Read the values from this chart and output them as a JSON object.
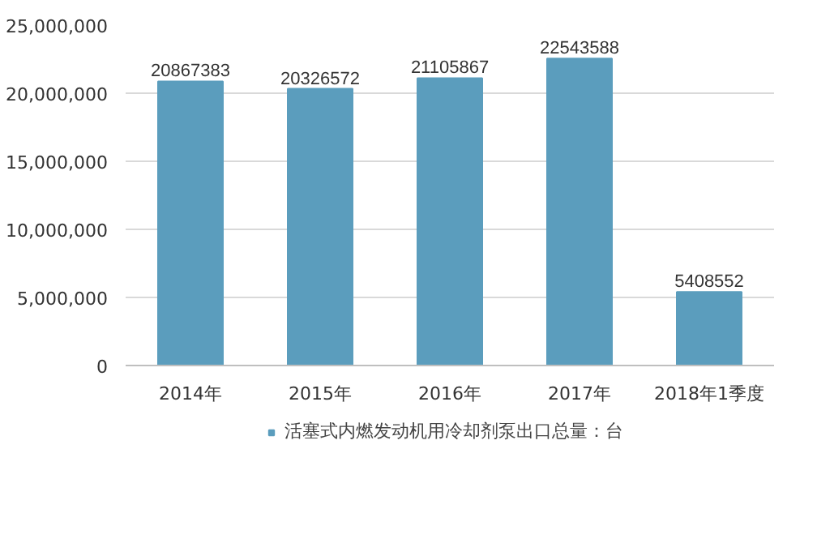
{
  "chart_data": {
    "type": "bar",
    "categories": [
      "2014年",
      "2015年",
      "2016年",
      "2017年",
      "2018年1季度"
    ],
    "series": [
      {
        "name": "活塞式内燃发动机用冷却剂泵出口总量：台",
        "color": "#5b9dbd",
        "values": [
          20867383,
          20326572,
          21105867,
          22543588,
          5408552
        ]
      }
    ],
    "ylim": [
      0,
      25000000
    ],
    "yticks": [
      {
        "value": 0,
        "label": "0"
      },
      {
        "value": 5000000,
        "label": "5,000,000"
      },
      {
        "value": 10000000,
        "label": "10,000,000"
      },
      {
        "value": 15000000,
        "label": "15,000,000"
      },
      {
        "value": 20000000,
        "label": "20,000,000"
      },
      {
        "value": 25000000,
        "label": "25,000,000"
      }
    ],
    "grid": "y",
    "legend": "bottom",
    "data_labels": true
  }
}
